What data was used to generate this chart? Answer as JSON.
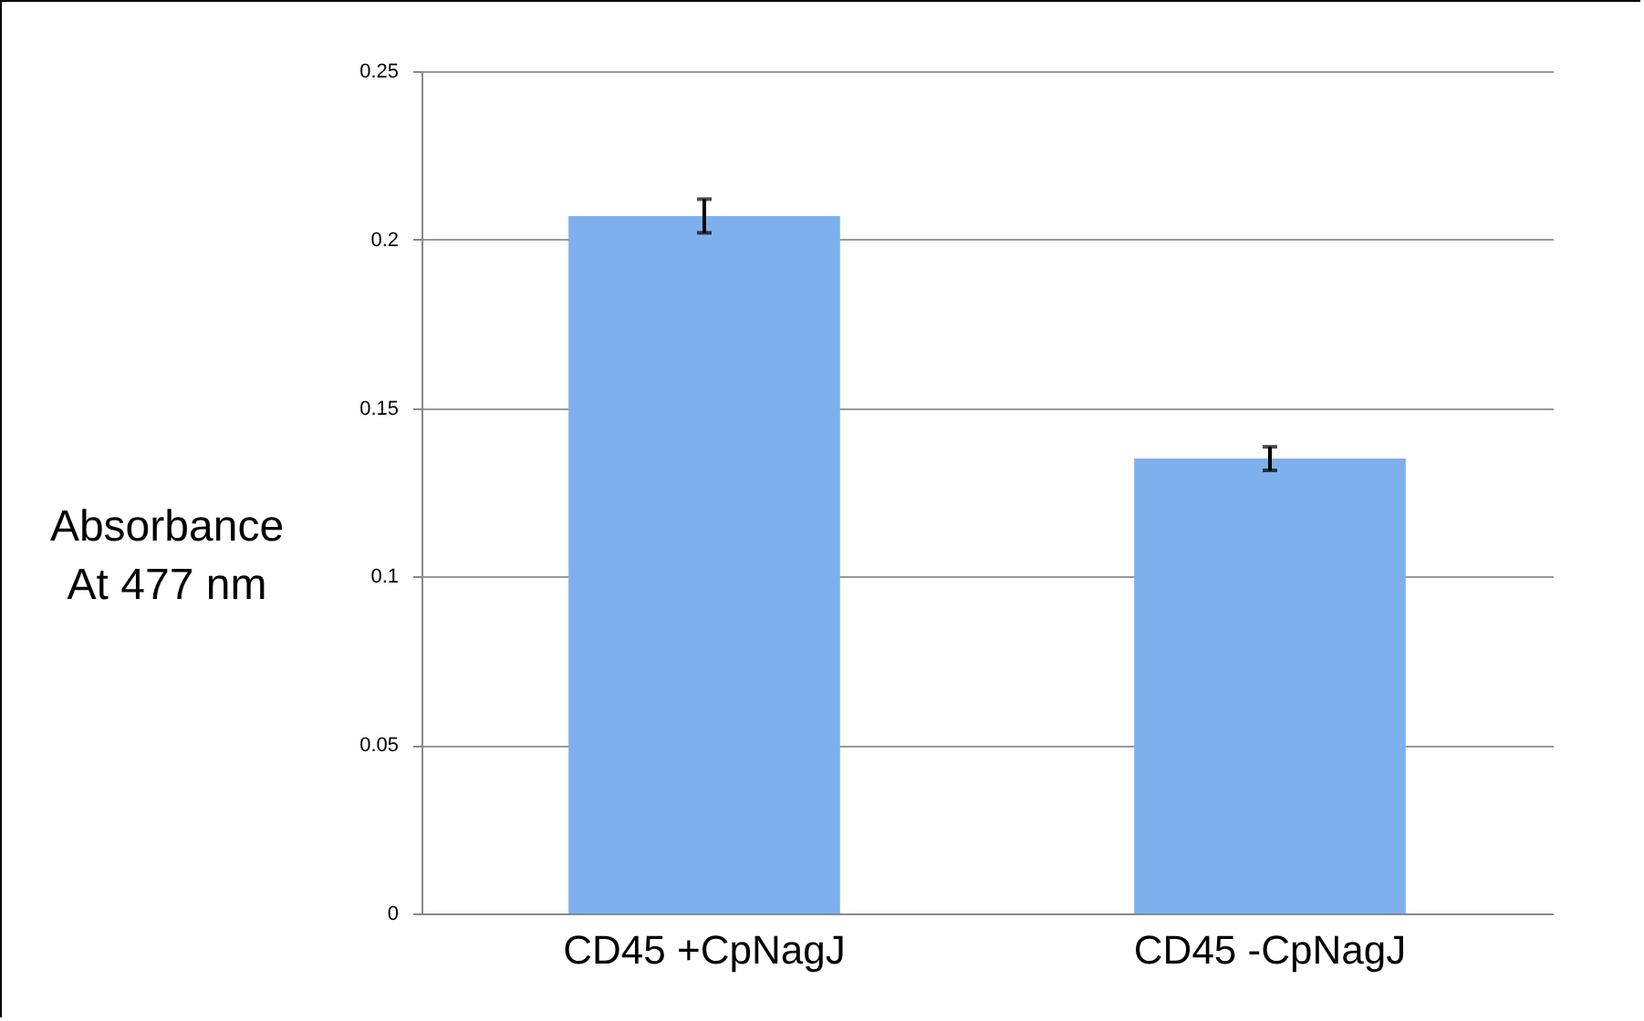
{
  "chart_data": {
    "type": "bar",
    "ylabel": "Absorbance\nAt 477 nm",
    "categories": [
      "CD45 +CpNagJ",
      "CD45 -CpNagJ"
    ],
    "values": [
      0.207,
      0.135
    ],
    "errors": [
      0.005,
      0.0035
    ],
    "color": "#7eb0ee",
    "ylim": [
      0,
      0.25
    ],
    "yticks": [
      0,
      0.05,
      0.1,
      0.15,
      0.2,
      0.25
    ],
    "grid": "y"
  }
}
